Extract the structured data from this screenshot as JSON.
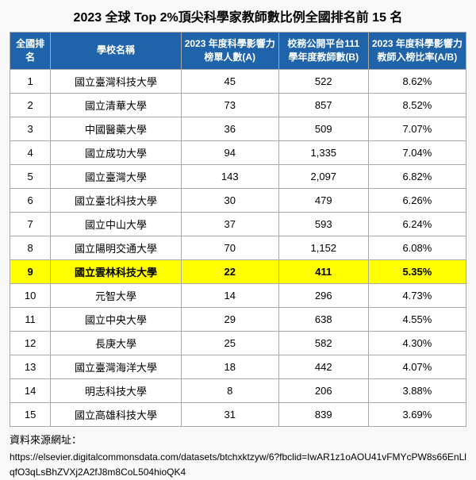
{
  "title": "2023 全球 Top 2%頂尖科學家教師數比例全國排名前 15 名",
  "headers": {
    "rank": "全國排名",
    "name": "學校名稱",
    "colA": "2023 年度科學影響力榜單人數(A)",
    "colB": "校務公開平台111 學年度教師數(B)",
    "ratio": "2023 年度科學影響力教師入榜比率(A/B)"
  },
  "rows": [
    {
      "rank": "1",
      "name": "國立臺灣科技大學",
      "a": "45",
      "b": "522",
      "ratio": "8.62%",
      "highlight": false
    },
    {
      "rank": "2",
      "name": "國立清華大學",
      "a": "73",
      "b": "857",
      "ratio": "8.52%",
      "highlight": false
    },
    {
      "rank": "3",
      "name": "中國醫藥大學",
      "a": "36",
      "b": "509",
      "ratio": "7.07%",
      "highlight": false
    },
    {
      "rank": "4",
      "name": "國立成功大學",
      "a": "94",
      "b": "1,335",
      "ratio": "7.04%",
      "highlight": false
    },
    {
      "rank": "5",
      "name": "國立臺灣大學",
      "a": "143",
      "b": "2,097",
      "ratio": "6.82%",
      "highlight": false
    },
    {
      "rank": "6",
      "name": "國立臺北科技大學",
      "a": "30",
      "b": "479",
      "ratio": "6.26%",
      "highlight": false
    },
    {
      "rank": "7",
      "name": "國立中山大學",
      "a": "37",
      "b": "593",
      "ratio": "6.24%",
      "highlight": false
    },
    {
      "rank": "8",
      "name": "國立陽明交通大學",
      "a": "70",
      "b": "1,152",
      "ratio": "6.08%",
      "highlight": false
    },
    {
      "rank": "9",
      "name": "國立雲林科技大學",
      "a": "22",
      "b": "411",
      "ratio": "5.35%",
      "highlight": true
    },
    {
      "rank": "10",
      "name": "元智大學",
      "a": "14",
      "b": "296",
      "ratio": "4.73%",
      "highlight": false
    },
    {
      "rank": "11",
      "name": "國立中央大學",
      "a": "29",
      "b": "638",
      "ratio": "4.55%",
      "highlight": false
    },
    {
      "rank": "12",
      "name": "長庚大學",
      "a": "25",
      "b": "582",
      "ratio": "4.30%",
      "highlight": false
    },
    {
      "rank": "13",
      "name": "國立臺灣海洋大學",
      "a": "18",
      "b": "442",
      "ratio": "4.07%",
      "highlight": false
    },
    {
      "rank": "14",
      "name": "明志科技大學",
      "a": "8",
      "b": "206",
      "ratio": "3.88%",
      "highlight": false
    },
    {
      "rank": "15",
      "name": "國立高雄科技大學",
      "a": "31",
      "b": "839",
      "ratio": "3.69%",
      "highlight": false
    }
  ],
  "source": {
    "label": "資料來源網址：",
    "url": "https://elsevier.digitalcommonsdata.com/datasets/btchxktzyw/6?fbclid=IwAR1z1oAOU41vFMYcPW8s66EnLlqfO3qLsBhZVXj2A2fJ8m8CoL504hioQK4"
  },
  "style": {
    "header_bg": "#1f64ab",
    "header_text": "#ffffff",
    "highlight_bg": "#ffff00",
    "border_color": "#a8a8a8",
    "page_bg": "#f8f8f8"
  }
}
